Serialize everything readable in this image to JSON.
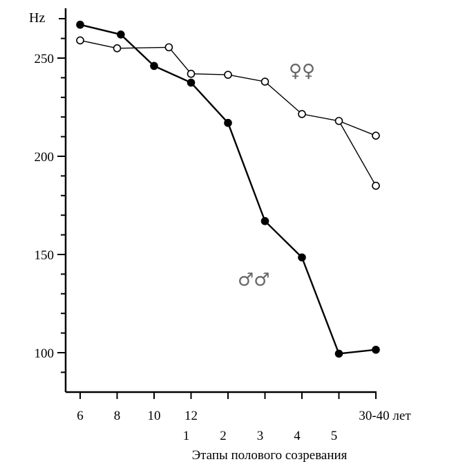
{
  "chart_data": {
    "type": "line",
    "y_unit": "Hz",
    "ylim": [
      85,
      263
    ],
    "y_ticks": [
      "100",
      "150",
      "200",
      "250"
    ],
    "x_ticks_age": [
      "6",
      "8",
      "10",
      "12"
    ],
    "x_ticks_stage": [
      "1",
      "2",
      "3",
      "4",
      "5"
    ],
    "x_tick_adult": "30-40 лет",
    "xlabel": "Этапы полового созревания",
    "series": [
      {
        "name": "♀♀",
        "marker": "open",
        "segments": [
          [
            [
              6,
              259
            ],
            [
              8,
              255
            ],
            [
              10.8,
              255.5
            ],
            [
              12,
              242
            ],
            [
              14,
              241.5
            ],
            [
              16,
              238
            ],
            [
              18,
              221.5
            ],
            [
              20,
              218
            ],
            [
              22,
              210.5
            ]
          ],
          [
            [
              20,
              218
            ],
            [
              22,
              185
            ]
          ]
        ]
      },
      {
        "name": "♂♂",
        "marker": "filled",
        "segments": [
          [
            [
              6,
              267
            ],
            [
              8.2,
              262
            ],
            [
              10,
              246
            ],
            [
              12,
              237.5
            ],
            [
              14,
              217
            ],
            [
              16,
              167
            ],
            [
              18,
              148.5
            ],
            [
              20,
              99.5
            ],
            [
              22,
              101.5
            ]
          ]
        ]
      }
    ]
  }
}
